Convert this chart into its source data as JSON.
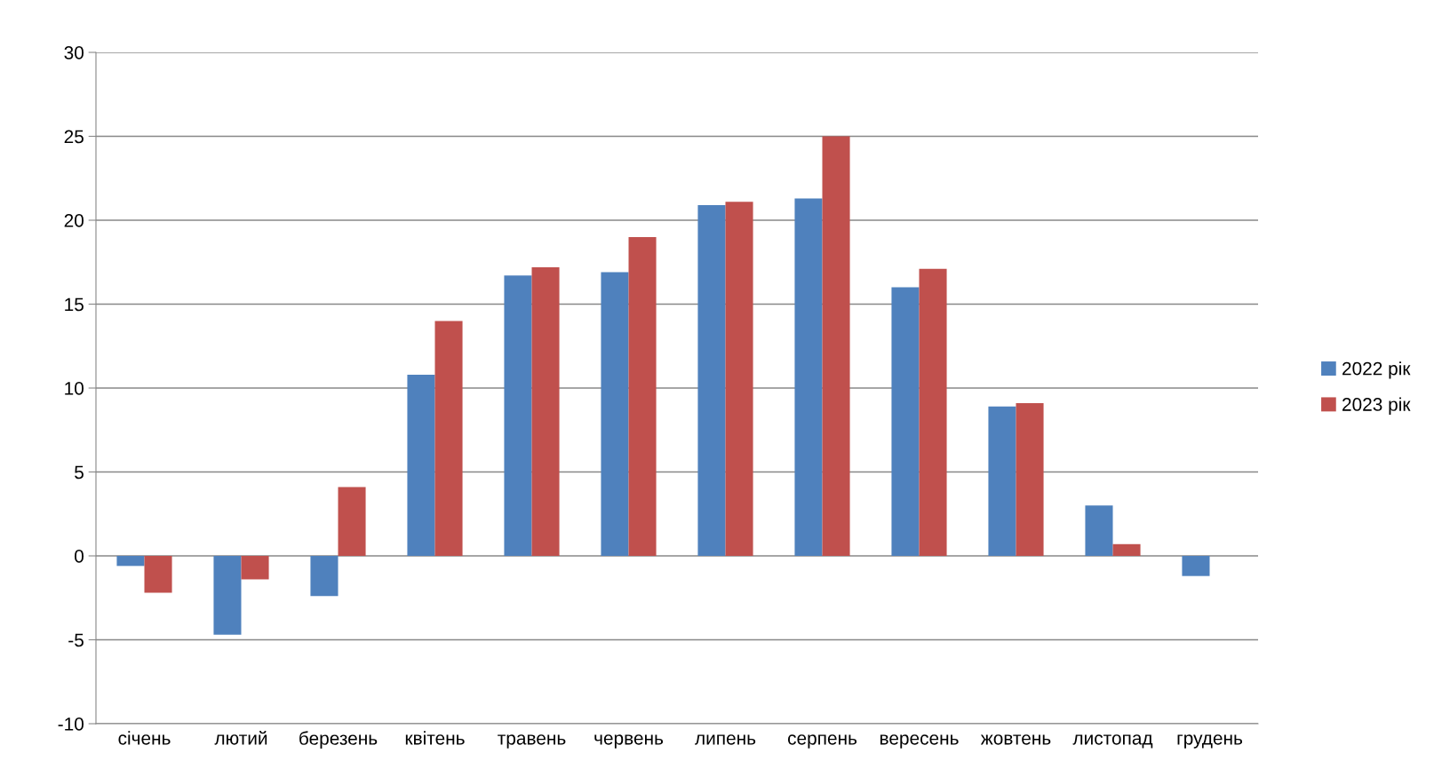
{
  "chart_data": {
    "type": "bar",
    "categories": [
      "січень",
      "лютий",
      "березень",
      "квітень",
      "травень",
      "червень",
      "липень",
      "серпень",
      "вересень",
      "жовтень",
      "листопад",
      "грудень"
    ],
    "series": [
      {
        "name": "2022 рік",
        "color": "#4f81bd",
        "values": [
          -0.6,
          -4.7,
          -2.4,
          10.8,
          16.7,
          16.9,
          20.9,
          21.3,
          16.0,
          8.9,
          3.0,
          -1.2
        ]
      },
      {
        "name": "2023 рік",
        "color": "#c0504d",
        "values": [
          -2.2,
          -1.4,
          4.1,
          14.0,
          17.2,
          19.0,
          21.1,
          25.0,
          17.1,
          9.1,
          0.7,
          null
        ]
      }
    ],
    "ylim": [
      -10,
      30
    ],
    "yticks": [
      -10,
      -5,
      0,
      5,
      10,
      15,
      20,
      25,
      30
    ],
    "grid": "y",
    "legend": "right"
  }
}
